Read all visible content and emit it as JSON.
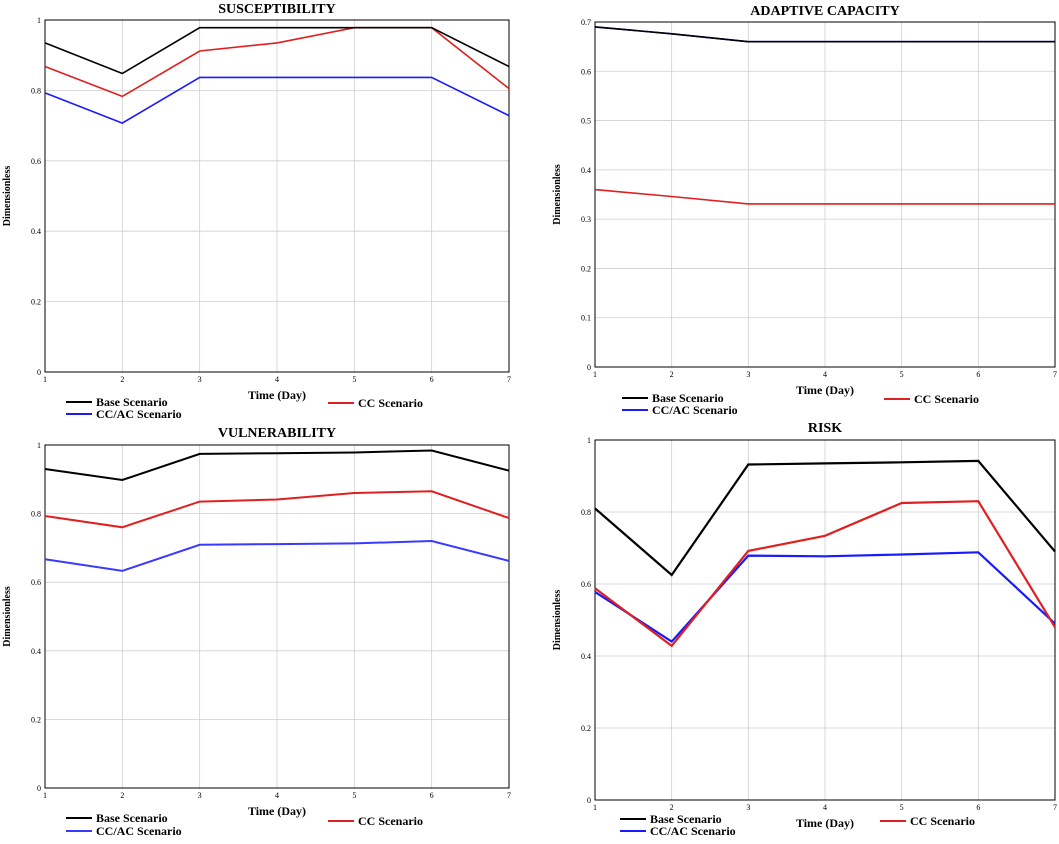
{
  "chart_data": [
    {
      "type": "line",
      "title": "SUSCEPTIBILITY",
      "xlabel": "Time (Day)",
      "ylabel": "Dimensionless",
      "x": [
        1,
        2,
        3,
        4,
        5,
        6,
        7
      ],
      "xlim": [
        1,
        7
      ],
      "ylim": [
        0,
        1
      ],
      "yticks": [
        "0",
        "0.2",
        "0.4",
        "0.6",
        "0.8",
        "1"
      ],
      "grid": true,
      "series": [
        {
          "name": "Base Scenario",
          "color": "#000000",
          "values": [
            0.935,
            0.848,
            0.978,
            0.978,
            0.978,
            0.978,
            0.868
          ]
        },
        {
          "name": "CC Scenario",
          "color": "#e02020",
          "values": [
            0.868,
            0.783,
            0.912,
            0.935,
            0.978,
            0.978,
            0.805
          ]
        },
        {
          "name": "CC/AC Scenario",
          "color": "#1a1aff",
          "values": [
            0.793,
            0.707,
            0.837,
            0.837,
            0.837,
            0.837,
            0.728
          ]
        }
      ]
    },
    {
      "type": "line",
      "title": "ADAPTIVE CAPACITY",
      "xlabel": "Time (Day)",
      "ylabel": "Dimensionless",
      "x": [
        1,
        2,
        3,
        4,
        5,
        6,
        7
      ],
      "xlim": [
        1,
        7
      ],
      "ylim": [
        0,
        0.7
      ],
      "yticks": [
        "0",
        "0.1",
        "0.2",
        "0.3",
        "0.4",
        "0.5",
        "0.6",
        "0.7"
      ],
      "grid": true,
      "series": [
        {
          "name": "Base Scenario",
          "color": "#000000",
          "values": [
            0.69,
            0.676,
            0.66,
            0.66,
            0.66,
            0.66,
            0.66
          ]
        },
        {
          "name": "CC Scenario",
          "color": "#e02020",
          "values": [
            0.36,
            0.346,
            0.331,
            0.331,
            0.331,
            0.331,
            0.331
          ]
        },
        {
          "name": "CC/AC Scenario",
          "color": "#1a1aff",
          "values": [
            0.69,
            0.676,
            0.66,
            0.66,
            0.66,
            0.66,
            0.66
          ]
        }
      ]
    },
    {
      "type": "line",
      "title": "VULNERABILITY",
      "xlabel": "Time (Day)",
      "ylabel": "Dimensionless",
      "x": [
        1,
        2,
        3,
        4,
        5,
        6,
        7
      ],
      "xlim": [
        1,
        7
      ],
      "ylim": [
        0,
        1
      ],
      "yticks": [
        "0",
        "0.2",
        "0.4",
        "0.6",
        "0.8",
        "1"
      ],
      "grid": true,
      "series": [
        {
          "name": "Base Scenario",
          "color": "#000000",
          "values": [
            0.93,
            0.898,
            0.974,
            0.976,
            0.978,
            0.984,
            0.925
          ]
        },
        {
          "name": "CC Scenario",
          "color": "#e02020",
          "values": [
            0.793,
            0.76,
            0.835,
            0.841,
            0.86,
            0.865,
            0.787
          ]
        },
        {
          "name": "CC/AC Scenario",
          "color": "#3a3aff",
          "values": [
            0.667,
            0.633,
            0.709,
            0.711,
            0.713,
            0.72,
            0.662
          ]
        }
      ]
    },
    {
      "type": "line",
      "title": "RISK",
      "xlabel": "Time (Day)",
      "ylabel": "Dimensionless",
      "x": [
        1,
        2,
        3,
        4,
        5,
        6,
        7
      ],
      "xlim": [
        1,
        7
      ],
      "ylim": [
        0,
        1
      ],
      "yticks": [
        "0",
        "0.2",
        "0.4",
        "0.6",
        "0.8",
        "1"
      ],
      "grid": true,
      "series": [
        {
          "name": "Base Scenario",
          "color": "#000000",
          "values": [
            0.81,
            0.625,
            0.932,
            0.935,
            0.938,
            0.942,
            0.69
          ]
        },
        {
          "name": "CC Scenario",
          "color": "#e02020",
          "values": [
            0.588,
            0.428,
            0.692,
            0.734,
            0.825,
            0.83,
            0.48
          ]
        },
        {
          "name": "CC/AC Scenario",
          "color": "#1a1aff",
          "values": [
            0.578,
            0.44,
            0.679,
            0.677,
            0.682,
            0.688,
            0.49
          ]
        }
      ]
    }
  ]
}
